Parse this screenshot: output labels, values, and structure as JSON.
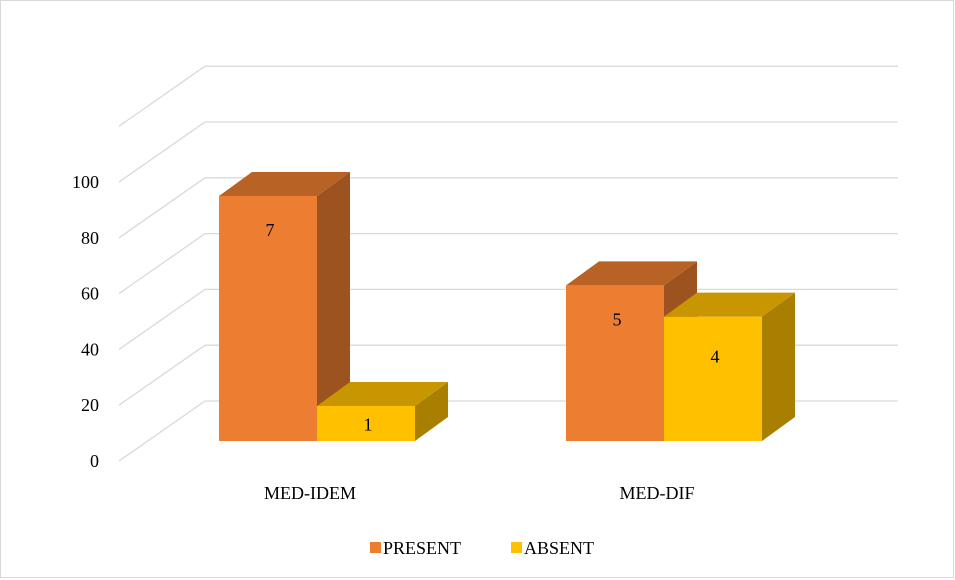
{
  "chart_data": {
    "type": "bar",
    "style": "3d-clustered-column",
    "categories": [
      "MED-IDEM",
      "MED-DIF"
    ],
    "series": [
      {
        "name": "PRESENT",
        "values": [
          87.5,
          55.6
        ],
        "data_labels": [
          "7",
          "5"
        ],
        "color": "#ED7D31"
      },
      {
        "name": "ABSENT",
        "values": [
          12.5,
          44.4
        ],
        "data_labels": [
          "1",
          "4"
        ],
        "color": "#FFC000"
      }
    ],
    "yticks": [
      0,
      20,
      40,
      60,
      80,
      100
    ],
    "ylim": [
      0,
      120
    ],
    "grid": true,
    "legend_position": "bottom"
  }
}
